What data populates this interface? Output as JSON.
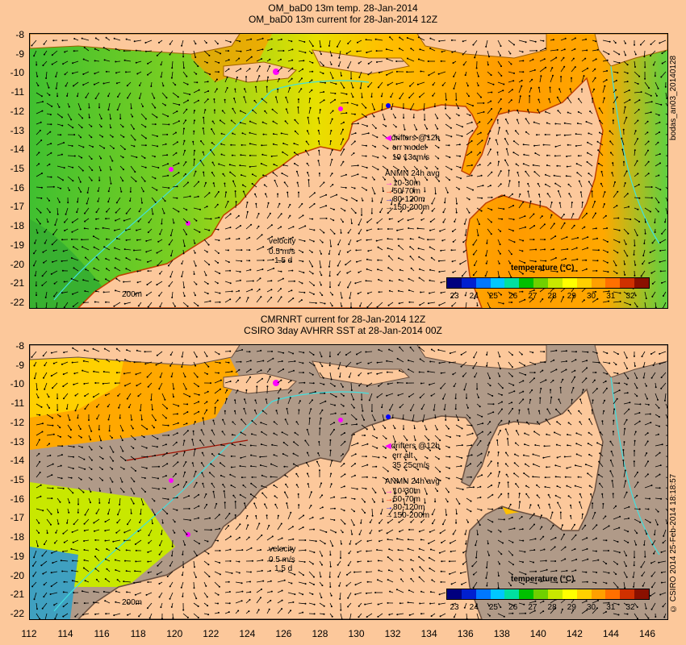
{
  "top_panel": {
    "title_line1": "OM_baD0 13m temp. 28-Jan-2014",
    "title_line2": "OM_baD0 13m current for 28-Jan-2014 12Z",
    "side_label": "bodas_an03_20140128",
    "drifters_label": "drifters @12h",
    "err_label": "err model",
    "err_value": "19 13cm/s",
    "anmn_title": "ANMN 24h avg",
    "anmn_items": [
      {
        "label": "10-30m",
        "color": "#ff00ff"
      },
      {
        "label": "50-70m",
        "color": "#ff2000"
      },
      {
        "label": "80-120m",
        "color": "#0000ff"
      },
      {
        "label": "150-200m",
        "color": "#000000"
      }
    ],
    "velocity_label": "velocity",
    "velocity_value": "0.5 m/s",
    "velocity_time": "1.5 d",
    "isobath_label": "200m",
    "colorbar_title": "temperature (°C)"
  },
  "bottom_panel": {
    "title_line1": "CMRNRT current for 28-Jan-2014 12Z",
    "title_line2": "CSIRO 3day AVHRR SST at 28-Jan-2014 00Z",
    "side_label": "© CSIRO 2014   25-Feb-2014 18:18:57",
    "drifters_label": "drifters @12h",
    "err_label": "err alt",
    "err_value": "35 25cm/s",
    "anmn_title": "ANMN 24h avg",
    "anmn_items": [
      {
        "label": "10-30m",
        "color": "#ff00ff"
      },
      {
        "label": "50-70m",
        "color": "#ff2000"
      },
      {
        "label": "80-120m",
        "color": "#0000ff"
      },
      {
        "label": "150-200m",
        "color": "#000000"
      }
    ],
    "velocity_label": "velocity",
    "velocity_value": "0.5 m/s",
    "velocity_time": "1.5 d",
    "isobath_label": "200m",
    "colorbar_title": "temperature (°C)"
  },
  "colorbar": {
    "ticks": [
      "23",
      "24",
      "25",
      "26",
      "27",
      "28",
      "29",
      "30",
      "31",
      "32"
    ],
    "colors": [
      "#00007f",
      "#0020d0",
      "#0078ff",
      "#00c8ff",
      "#00e0a0",
      "#00c000",
      "#70d000",
      "#c8e800",
      "#ffff00",
      "#ffd000",
      "#ffa000",
      "#ff7000",
      "#d03000",
      "#8a1000"
    ]
  },
  "axes": {
    "lat_ticks": [
      "-8",
      "-9",
      "-10",
      "-11",
      "-12",
      "-13",
      "-14",
      "-15",
      "-16",
      "-17",
      "-18",
      "-19",
      "-20",
      "-21",
      "-22"
    ],
    "lon_ticks": [
      "112",
      "114",
      "116",
      "118",
      "120",
      "122",
      "124",
      "126",
      "128",
      "130",
      "132",
      "134",
      "136",
      "138",
      "140",
      "142",
      "144",
      "146"
    ]
  },
  "colors": {
    "land": "#fcc89b",
    "no_data": "#b09a88",
    "warm": "#ff9a00",
    "mid": "#e8e000",
    "cool": "#40c030",
    "isobath": "#40e0e0"
  }
}
